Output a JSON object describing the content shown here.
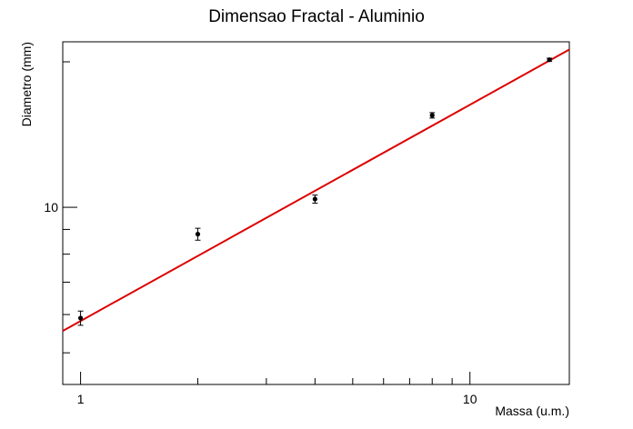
{
  "chart_data": {
    "type": "scatter",
    "title": "Dimensao Fractal - Aluminio",
    "xlabel": "Massa (u.m.)",
    "ylabel": "Diametro (mm)",
    "xscale": "log",
    "yscale": "log",
    "xlim": [
      0.9,
      18
    ],
    "ylim": [
      4.3,
      22
    ],
    "x_tick_labels": [
      {
        "value": 1,
        "label": "1"
      },
      {
        "value": 10,
        "label": "10"
      }
    ],
    "y_tick_labels": [
      {
        "value": 10,
        "label": "10"
      }
    ],
    "grid": false,
    "points": [
      {
        "x": 1,
        "y": 5.9,
        "yerr": 0.2
      },
      {
        "x": 2,
        "y": 8.8,
        "yerr": 0.25
      },
      {
        "x": 4,
        "y": 10.4,
        "yerr": 0.2
      },
      {
        "x": 8,
        "y": 15.5,
        "yerr": 0.2
      },
      {
        "x": 16,
        "y": 20.2,
        "yerr": 0.15
      }
    ],
    "fit": {
      "x": [
        0.9,
        18
      ],
      "y": [
        5.55,
        21.2
      ]
    },
    "colors": {
      "points": "#000000",
      "fit": "#dd0000"
    }
  }
}
